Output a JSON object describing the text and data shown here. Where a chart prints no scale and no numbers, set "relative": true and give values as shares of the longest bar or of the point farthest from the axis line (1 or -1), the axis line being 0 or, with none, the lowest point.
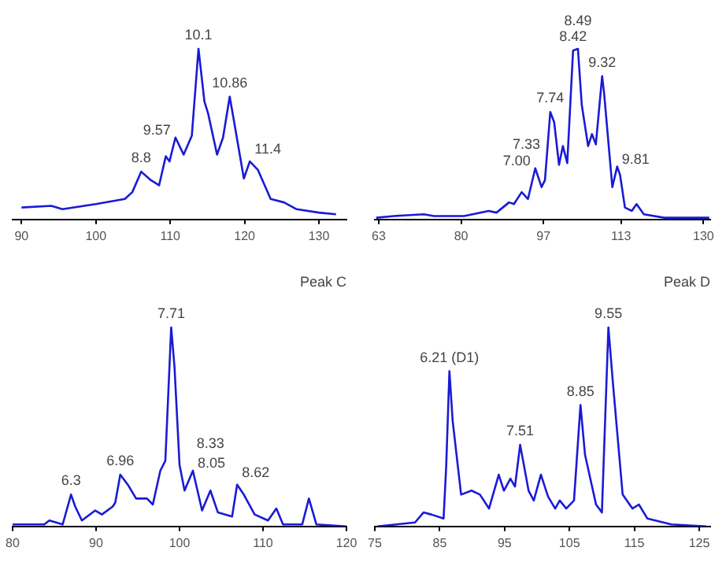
{
  "chart_data": [
    {
      "type": "line",
      "relative": true,
      "tick_labels": "x",
      "xlim": [
        88.8,
        133.7
      ],
      "xticks": [
        90,
        100,
        110,
        120,
        130
      ],
      "x": [
        90,
        94,
        95.5,
        100,
        103.9,
        104.9,
        106.1,
        107.4,
        108.5,
        109.4,
        109.9,
        110.7,
        111.8,
        112.9,
        113.8,
        114.6,
        115.1,
        116.3,
        117.1,
        118,
        118.6,
        119.9,
        120.7,
        121.8,
        123.5,
        125.3,
        127,
        130,
        132.3
      ],
      "series": [
        {
          "color": "#1a1ad6",
          "values": [
            0.07,
            0.08,
            0.06,
            0.09,
            0.12,
            0.16,
            0.28,
            0.23,
            0.2,
            0.37,
            0.34,
            0.48,
            0.38,
            0.49,
            1.0,
            0.69,
            0.62,
            0.38,
            0.48,
            0.72,
            0.57,
            0.24,
            0.34,
            0.29,
            0.12,
            0.1,
            0.06,
            0.04,
            0.03
          ]
        }
      ],
      "annotations": [
        {
          "text": "8.8",
          "x": 106.1,
          "y": 0.28
        },
        {
          "text": "9.57",
          "x": 110.7,
          "y": 0.48
        },
        {
          "text": "10.1",
          "x": 113.8,
          "y": 1.0
        },
        {
          "text": "10.86",
          "x": 118,
          "y": 0.72
        },
        {
          "text": "11.4",
          "x": 120.7,
          "y": 0.34
        }
      ]
    },
    {
      "type": "line",
      "relative": true,
      "tick_labels": "x",
      "xlim": [
        62.2,
        131.4
      ],
      "xticks": [
        63,
        80,
        97,
        113,
        130
      ],
      "x": [
        62.5,
        66.1,
        72.3,
        74.4,
        80.6,
        85.7,
        87.3,
        89.9,
        90.9,
        92.5,
        93.8,
        95.3,
        96.6,
        97.3,
        98.4,
        99.2,
        100.2,
        101.0,
        101.9,
        103.1,
        104.1,
        104.9,
        106.2,
        107.0,
        107.8,
        109.1,
        109.5,
        111.2,
        112.2,
        112.8,
        113.8,
        115.2,
        116.2,
        117.7,
        121.9,
        131.2
      ],
      "series": [
        {
          "color": "#1a1ad6",
          "values": [
            0.01,
            0.02,
            0.03,
            0.02,
            0.02,
            0.05,
            0.04,
            0.1,
            0.09,
            0.16,
            0.12,
            0.3,
            0.19,
            0.23,
            0.63,
            0.57,
            0.32,
            0.43,
            0.33,
            0.99,
            1.0,
            0.67,
            0.43,
            0.5,
            0.44,
            0.84,
            0.74,
            0.19,
            0.31,
            0.26,
            0.07,
            0.05,
            0.09,
            0.03,
            0.01,
            0.01
          ]
        }
      ],
      "annotations": [
        {
          "text": "7.00",
          "x": 95.3,
          "y": 0.3
        },
        {
          "text": "7.33",
          "x": 97.3,
          "y": 0.23
        },
        {
          "text": "7.74",
          "x": 98.4,
          "y": 0.63
        },
        {
          "text": "8.42",
          "x": 103.1,
          "y": 0.99
        },
        {
          "text": "8.49",
          "x": 104.1,
          "y": 1.0
        },
        {
          "text": "9.32",
          "x": 109.1,
          "y": 0.84
        },
        {
          "text": "9.81",
          "x": 112.2,
          "y": 0.31
        }
      ]
    },
    {
      "type": "line",
      "relative": true,
      "tick_labels": "x",
      "title": "Peak C",
      "xlim": [
        80,
        120
      ],
      "xticks": [
        80,
        90,
        100,
        110,
        120
      ],
      "x": [
        80,
        81.8,
        83.8,
        84.4,
        86,
        87,
        87.5,
        88.3,
        89.9,
        90.7,
        92,
        92.3,
        92.9,
        93.8,
        94.8,
        96.1,
        96.8,
        97.7,
        98.3,
        99,
        99.4,
        100,
        100.6,
        101.6,
        102.7,
        103.7,
        104.6,
        106.3,
        106.9,
        107.7,
        109,
        110.6,
        111.6,
        112.4,
        114.7,
        115.5,
        116.4,
        120
      ],
      "series": [
        {
          "color": "#1a1ad6",
          "values": [
            0.01,
            0.01,
            0.01,
            0.03,
            0.01,
            0.16,
            0.1,
            0.03,
            0.08,
            0.06,
            0.1,
            0.12,
            0.26,
            0.21,
            0.14,
            0.14,
            0.11,
            0.28,
            0.33,
            1.0,
            0.8,
            0.31,
            0.18,
            0.28,
            0.08,
            0.18,
            0.07,
            0.05,
            0.21,
            0.16,
            0.06,
            0.03,
            0.09,
            0.01,
            0.01,
            0.14,
            0.01,
            0
          ]
        }
      ],
      "annotations": [
        {
          "text": "6.3",
          "x": 87,
          "y": 0.16
        },
        {
          "text": "6.96",
          "x": 92.9,
          "y": 0.26
        },
        {
          "text": "7.71",
          "x": 99,
          "y": 1.0
        },
        {
          "text": "8.05",
          "x": 101.6,
          "y": 0.28
        },
        {
          "text": "8.33",
          "x": 103.7,
          "y": 0.18
        },
        {
          "text": "8.62",
          "x": 106.9,
          "y": 0.21
        }
      ]
    },
    {
      "type": "line",
      "relative": true,
      "tick_labels": "x",
      "title": "Peak D",
      "xlim": [
        75,
        126.7
      ],
      "xticks": [
        75,
        85,
        95,
        105,
        115,
        125
      ],
      "x": [
        75.4,
        78.3,
        81.2,
        82.5,
        83.7,
        85.6,
        86,
        86.5,
        87,
        88.3,
        89.9,
        91.2,
        92.6,
        94.1,
        94.9,
        95.9,
        96.6,
        97.4,
        98.7,
        99.5,
        100.6,
        101.7,
        102.8,
        103.5,
        104.5,
        105.7,
        106.7,
        107.4,
        109.1,
        110,
        111,
        111.7,
        113.2,
        114.7,
        115.7,
        117,
        120.7,
        126.1
      ],
      "series": [
        {
          "color": "#1a1ad6",
          "values": [
            0,
            0.01,
            0.02,
            0.07,
            0.06,
            0.04,
            0.3,
            0.78,
            0.53,
            0.16,
            0.18,
            0.16,
            0.09,
            0.26,
            0.18,
            0.24,
            0.2,
            0.41,
            0.18,
            0.13,
            0.26,
            0.15,
            0.09,
            0.13,
            0.09,
            0.13,
            0.61,
            0.36,
            0.11,
            0.07,
            1.0,
            0.72,
            0.16,
            0.09,
            0.11,
            0.04,
            0.01,
            0
          ]
        }
      ],
      "annotations": [
        {
          "text": "6.21 (D1)",
          "x": 86.5,
          "y": 0.78
        },
        {
          "text": "7.51",
          "x": 97.4,
          "y": 0.41
        },
        {
          "text": "8.85",
          "x": 106.7,
          "y": 0.61
        },
        {
          "text": "9.55",
          "x": 111,
          "y": 1.0
        }
      ]
    }
  ]
}
